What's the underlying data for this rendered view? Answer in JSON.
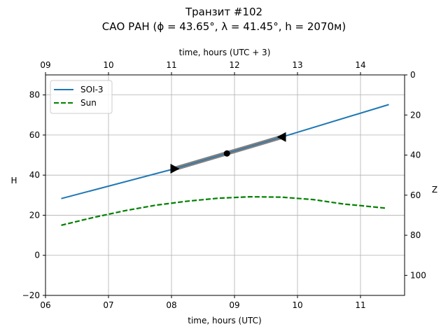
{
  "chart_data": {
    "type": "line",
    "title_line1": "Транзит #102",
    "title_line2": "САО РАН (ϕ = 43.65°, λ = 41.45°, h = 2070м)",
    "xlabel_bottom": "time, hours (UTC)",
    "xlabel_top": "time, hours (UTC + 3)",
    "ylabel_left": "H",
    "ylabel_right": "Z",
    "xlim": [
      6.0,
      11.7
    ],
    "ylim": [
      -20,
      90
    ],
    "zlim": [
      110,
      0
    ],
    "grid": true,
    "legend_position": "upper-left",
    "x_ticks": [
      6,
      7,
      8,
      9,
      10,
      11
    ],
    "x_tick_labels": [
      "06",
      "07",
      "08",
      "09",
      "10",
      "11"
    ],
    "x_top_ticks": [
      9,
      10,
      11,
      12,
      13,
      14
    ],
    "x_top_tick_labels": [
      "09",
      "10",
      "11",
      "12",
      "13",
      "14"
    ],
    "y_ticks": [
      -20,
      0,
      20,
      40,
      60,
      80
    ],
    "y_tick_labels": [
      "−20",
      "0",
      "20",
      "40",
      "60",
      "80"
    ],
    "z_ticks": [
      0,
      20,
      40,
      60,
      80,
      100
    ],
    "z_tick_labels": [
      "0",
      "20",
      "40",
      "60",
      "80",
      "100"
    ],
    "series": [
      {
        "name": "SOI-3",
        "color": "#1f77b4",
        "style": "solid",
        "x": [
          6.25,
          8.05,
          9.75,
          11.45
        ],
        "y": [
          28.3,
          43.2,
          59.0,
          75.2
        ]
      },
      {
        "name": "Sun",
        "color": "#008000",
        "style": "dashed",
        "x": [
          6.25,
          6.75,
          7.25,
          7.75,
          8.25,
          8.75,
          9.25,
          9.75,
          10.25,
          10.75,
          11.0,
          11.25,
          11.4
        ],
        "y": [
          15.0,
          18.8,
          22.2,
          25.0,
          27.0,
          28.5,
          29.2,
          29.0,
          27.8,
          25.5,
          24.8,
          24.0,
          23.5
        ]
      }
    ],
    "transit_segment": {
      "color": "#808080",
      "x": [
        8.05,
        9.75
      ],
      "y": [
        43.2,
        59.0
      ]
    },
    "markers": [
      {
        "name": "transit-start",
        "shape": "triangle-right",
        "x": 8.05,
        "y": 43.2
      },
      {
        "name": "transit-mid",
        "shape": "circle",
        "x": 8.88,
        "y": 50.8
      },
      {
        "name": "transit-end",
        "shape": "triangle-left",
        "x": 9.75,
        "y": 59.0
      }
    ]
  }
}
